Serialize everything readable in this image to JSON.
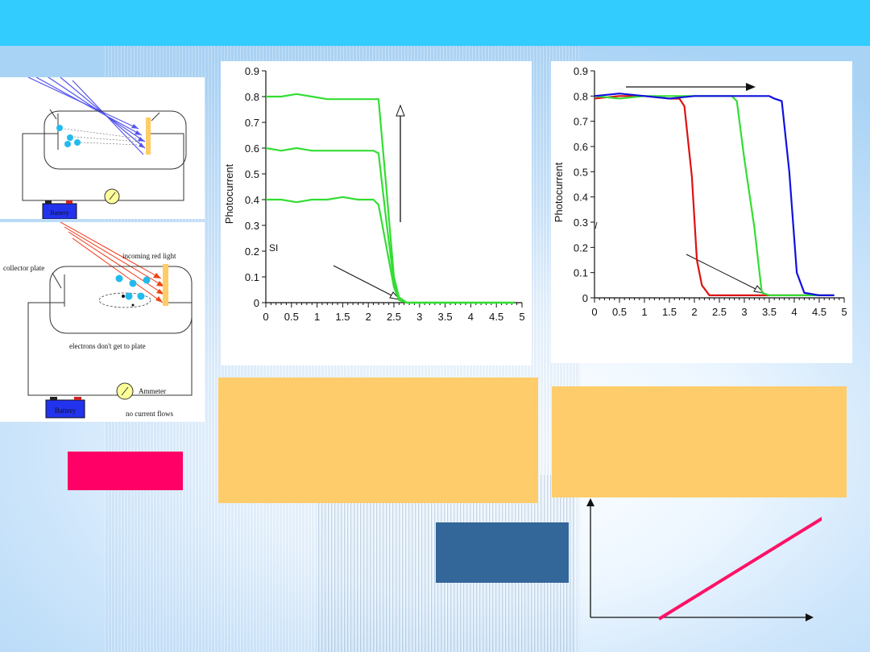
{
  "circuit_top": {
    "battery_label": "Battery"
  },
  "circuit_bottom": {
    "collector_label": "collector plate",
    "light_label": "incoming red light",
    "electrons_label": "electrons don't get to plate",
    "ammeter_label": "Ammeter",
    "battery_label": "Battery",
    "current_label": "no current flows"
  },
  "chart_data": [
    {
      "type": "line",
      "ylabel": "Photocurrent",
      "annotation": "SI",
      "xlim": [
        0,
        5
      ],
      "ylim": [
        0,
        0.9
      ],
      "x_ticks": [
        "0",
        "0.5",
        "1",
        "1.5",
        "2",
        "2.5",
        "3",
        "3.5",
        "4",
        "4.5",
        "5"
      ],
      "y_ticks": [
        "0",
        "0.1",
        "0.2",
        "0.3",
        "0.4",
        "0.5",
        "0.6",
        "0.7",
        "0.8",
        "0.9"
      ],
      "colors": [
        "#33dd33",
        "#33dd33",
        "#33dd33"
      ],
      "series": [
        {
          "x": [
            0,
            0.3,
            0.6,
            0.9,
            1.2,
            1.5,
            1.8,
            2.1,
            2.2,
            2.35,
            2.5,
            2.6,
            2.75,
            3,
            4,
            4.85
          ],
          "y": [
            0.8,
            0.8,
            0.81,
            0.8,
            0.79,
            0.79,
            0.79,
            0.79,
            0.79,
            0.45,
            0.1,
            0.02,
            0,
            0,
            0,
            0
          ]
        },
        {
          "x": [
            0,
            0.3,
            0.6,
            0.9,
            1.2,
            1.5,
            1.8,
            2.1,
            2.2,
            2.35,
            2.5,
            2.6,
            2.75,
            3,
            4,
            4.85
          ],
          "y": [
            0.6,
            0.59,
            0.6,
            0.59,
            0.59,
            0.59,
            0.59,
            0.59,
            0.58,
            0.32,
            0.08,
            0.02,
            0,
            0,
            0,
            0
          ]
        },
        {
          "x": [
            0,
            0.3,
            0.6,
            0.9,
            1.2,
            1.5,
            1.8,
            2.1,
            2.2,
            2.35,
            2.5,
            2.6,
            2.75,
            3,
            4,
            4.85
          ],
          "y": [
            0.4,
            0.4,
            0.39,
            0.4,
            0.4,
            0.41,
            0.4,
            0.4,
            0.38,
            0.22,
            0.06,
            0.01,
            0,
            0,
            0,
            0
          ]
        }
      ]
    },
    {
      "type": "line",
      "ylabel": "Photocurrent",
      "xlim": [
        0,
        5
      ],
      "ylim": [
        0,
        0.9
      ],
      "x_ticks": [
        "0",
        "0.5",
        "1",
        "1.5",
        "2",
        "2.5",
        "3",
        "3.5",
        "4",
        "4.5",
        "5"
      ],
      "y_ticks": [
        "0",
        "0.1",
        "0.2",
        "0.3",
        "0.4",
        "0.5",
        "0.6",
        "0.7",
        "0.8",
        "0.9"
      ],
      "colors": [
        "#dd1111",
        "#33dd33",
        "#1111dd"
      ],
      "series": [
        {
          "x": [
            0,
            0.5,
            1,
            1.5,
            1.7,
            1.8,
            1.95,
            2.05,
            2.15,
            2.3,
            3,
            4,
            4.8
          ],
          "y": [
            0.79,
            0.8,
            0.8,
            0.79,
            0.79,
            0.76,
            0.48,
            0.15,
            0.05,
            0.01,
            0.01,
            0.01,
            0.01
          ]
        },
        {
          "x": [
            0,
            0.5,
            1,
            1.5,
            2,
            2.5,
            2.75,
            2.85,
            3.0,
            3.2,
            3.35,
            3.5,
            4,
            4.8
          ],
          "y": [
            0.8,
            0.79,
            0.8,
            0.8,
            0.8,
            0.8,
            0.8,
            0.78,
            0.55,
            0.28,
            0.02,
            0.01,
            0.01,
            0.01
          ]
        },
        {
          "x": [
            0,
            0.5,
            1,
            1.5,
            2,
            2.5,
            3,
            3.5,
            3.6,
            3.75,
            3.9,
            4.05,
            4.2,
            4.5,
            4.8
          ],
          "y": [
            0.8,
            0.81,
            0.8,
            0.79,
            0.8,
            0.8,
            0.8,
            0.8,
            0.79,
            0.78,
            0.5,
            0.1,
            0.02,
            0.01,
            0.01
          ]
        }
      ]
    }
  ],
  "colors": {
    "topbar": "#33ccff",
    "note_box": "#fecc6a",
    "pink_box": "#ff0066",
    "blue_box": "#336699",
    "line_plot": "#ff1166"
  }
}
